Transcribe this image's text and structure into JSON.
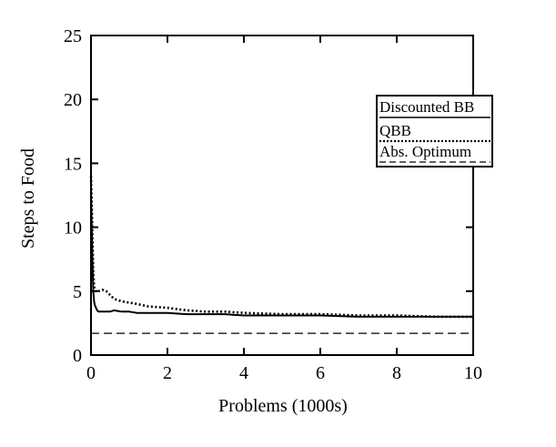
{
  "chart_data": {
    "type": "line",
    "xlabel": "Problems (1000s)",
    "ylabel": "Steps to Food",
    "xlim": [
      0,
      10
    ],
    "ylim": [
      0,
      25
    ],
    "xticks": [
      "0",
      "2",
      "4",
      "6",
      "8",
      "10"
    ],
    "yticks": [
      "0",
      "5",
      "10",
      "15",
      "20",
      "25"
    ],
    "grid": false,
    "legend_position": "right",
    "series": [
      {
        "name": "Discounted BB",
        "style": "solid",
        "color": "#000000",
        "x": [
          0,
          0.02,
          0.04,
          0.06,
          0.08,
          0.1,
          0.13,
          0.16,
          0.2,
          0.3,
          0.4,
          0.5,
          0.6,
          0.8,
          1.0,
          1.2,
          1.5,
          2.0,
          2.5,
          3.0,
          3.5,
          4.0,
          5.0,
          6.0,
          7.0,
          8.0,
          9.0,
          10.0
        ],
        "y": [
          13.0,
          10.0,
          7.0,
          5.0,
          4.2,
          3.9,
          3.7,
          3.5,
          3.4,
          3.4,
          3.4,
          3.4,
          3.5,
          3.4,
          3.4,
          3.3,
          3.3,
          3.3,
          3.2,
          3.2,
          3.2,
          3.1,
          3.1,
          3.1,
          3.0,
          3.0,
          3.0,
          3.0
        ]
      },
      {
        "name": "QBB",
        "style": "dotted",
        "color": "#000000",
        "x": [
          0,
          0.02,
          0.04,
          0.06,
          0.08,
          0.1,
          0.13,
          0.16,
          0.2,
          0.3,
          0.4,
          0.5,
          0.6,
          0.8,
          1.0,
          1.2,
          1.5,
          2.0,
          2.5,
          3.0,
          3.5,
          4.0,
          5.0,
          6.0,
          7.0,
          8.0,
          9.0,
          10.0
        ],
        "y": [
          14.0,
          12.0,
          9.0,
          6.5,
          5.4,
          5.1,
          5.0,
          4.9,
          5.0,
          5.1,
          5.0,
          4.7,
          4.4,
          4.2,
          4.1,
          4.0,
          3.8,
          3.7,
          3.5,
          3.4,
          3.4,
          3.3,
          3.2,
          3.2,
          3.1,
          3.1,
          3.0,
          3.0
        ]
      },
      {
        "name": "Abs. Optimum",
        "style": "dashed",
        "color": "#000000",
        "x": [
          0,
          10
        ],
        "y": [
          1.7,
          1.7
        ]
      }
    ]
  }
}
